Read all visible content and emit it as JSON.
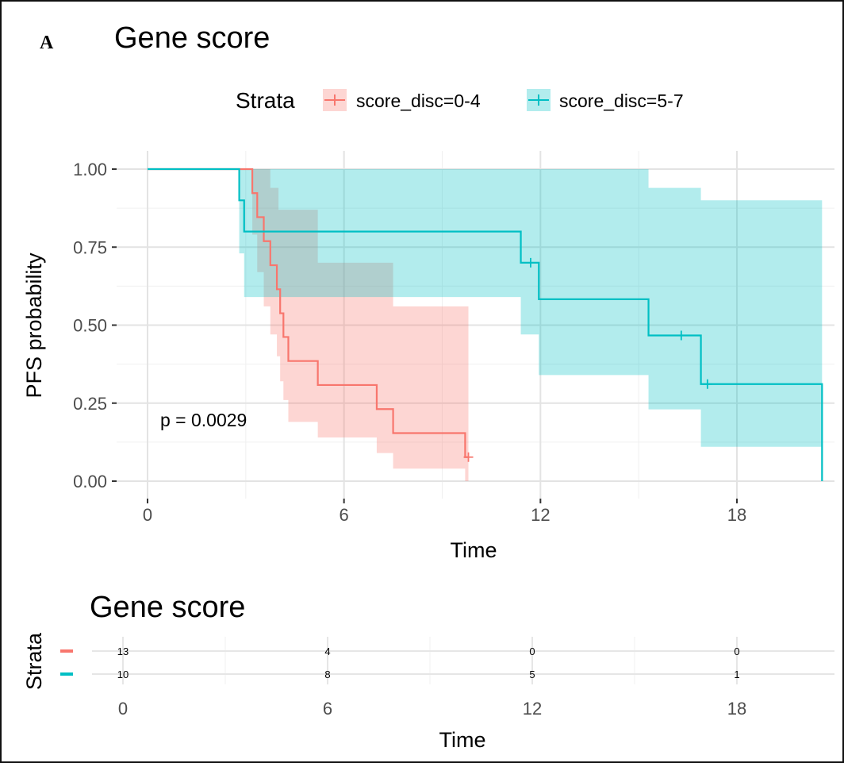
{
  "panel_label": "A",
  "chart_data": [
    {
      "type": "line",
      "subtype": "kaplan-meier",
      "title": "Gene score",
      "xlabel": "Time",
      "ylabel": "PFS probability",
      "xlim": [
        0,
        21
      ],
      "ylim": [
        0,
        1
      ],
      "x_ticks": [
        "0",
        "6",
        "12",
        "18"
      ],
      "y_ticks": [
        "0.00",
        "0.25",
        "0.50",
        "0.75",
        "1.00"
      ],
      "grid": true,
      "legend": {
        "title": "Strata",
        "position": "top"
      },
      "annotation": "p = 0.0029",
      "colors": {
        "score_disc=0-4": "#F8766D",
        "score_disc=5-7": "#00BFC4"
      },
      "series": [
        {
          "name": "score_disc=0-4",
          "color": "#F8766D",
          "steps": [
            [
              0,
              1.0
            ],
            [
              3.2,
              0.923
            ],
            [
              3.35,
              0.846
            ],
            [
              3.55,
              0.769
            ],
            [
              3.75,
              0.692
            ],
            [
              3.95,
              0.615
            ],
            [
              4.05,
              0.538
            ],
            [
              4.15,
              0.462
            ],
            [
              4.3,
              0.385
            ],
            [
              5.2,
              0.308
            ],
            [
              7.0,
              0.231
            ],
            [
              7.5,
              0.154
            ],
            [
              9.7,
              0.077
            ],
            [
              9.8,
              0.077
            ]
          ],
          "ci_upper": [
            [
              0,
              1.0
            ],
            [
              3.2,
              1.0
            ],
            [
              3.75,
              0.94
            ],
            [
              4.0,
              0.87
            ],
            [
              5.2,
              0.7
            ],
            [
              7.5,
              0.56
            ],
            [
              9.8,
              0.56
            ]
          ],
          "ci_lower": [
            [
              0,
              1.0
            ],
            [
              3.2,
              0.79
            ],
            [
              3.35,
              0.67
            ],
            [
              3.55,
              0.56
            ],
            [
              3.75,
              0.47
            ],
            [
              3.95,
              0.4
            ],
            [
              4.05,
              0.32
            ],
            [
              4.15,
              0.26
            ],
            [
              4.3,
              0.19
            ],
            [
              5.2,
              0.14
            ],
            [
              7.0,
              0.09
            ],
            [
              7.5,
              0.04
            ],
            [
              9.7,
              0.0
            ],
            [
              9.8,
              0.0
            ]
          ],
          "censored": [
            [
              9.8,
              0.077
            ]
          ]
        },
        {
          "name": "score_disc=5-7",
          "color": "#00BFC4",
          "steps": [
            [
              0,
              1.0
            ],
            [
              2.8,
              0.9
            ],
            [
              2.95,
              0.8
            ],
            [
              11.4,
              0.7
            ],
            [
              11.95,
              0.583
            ],
            [
              15.3,
              0.467
            ],
            [
              16.9,
              0.311
            ],
            [
              20.6,
              0.0
            ]
          ],
          "ci_upper": [
            [
              0,
              1.0
            ],
            [
              2.8,
              1.0
            ],
            [
              15.3,
              0.94
            ],
            [
              16.9,
              0.9
            ],
            [
              20.6,
              0.9
            ]
          ],
          "ci_lower": [
            [
              0,
              1.0
            ],
            [
              2.8,
              0.73
            ],
            [
              2.95,
              0.59
            ],
            [
              11.4,
              0.47
            ],
            [
              11.95,
              0.34
            ],
            [
              15.3,
              0.23
            ],
            [
              16.9,
              0.11
            ],
            [
              20.6,
              0.11
            ]
          ],
          "censored": [
            [
              11.7,
              0.7
            ],
            [
              16.3,
              0.467
            ],
            [
              17.1,
              0.311
            ]
          ]
        }
      ]
    },
    {
      "type": "table",
      "title": "Gene score",
      "xlabel": "Time",
      "ylabel": "Strata",
      "x_ticks": [
        "0",
        "6",
        "12",
        "18"
      ],
      "times": [
        0,
        6,
        12,
        18
      ],
      "rows": [
        {
          "name": "score_disc=0-4",
          "color": "#F8766D",
          "values": [
            "13",
            "4",
            "0",
            "0"
          ]
        },
        {
          "name": "score_disc=5-7",
          "color": "#00BFC4",
          "values": [
            "10",
            "8",
            "5",
            "1"
          ]
        }
      ]
    }
  ]
}
